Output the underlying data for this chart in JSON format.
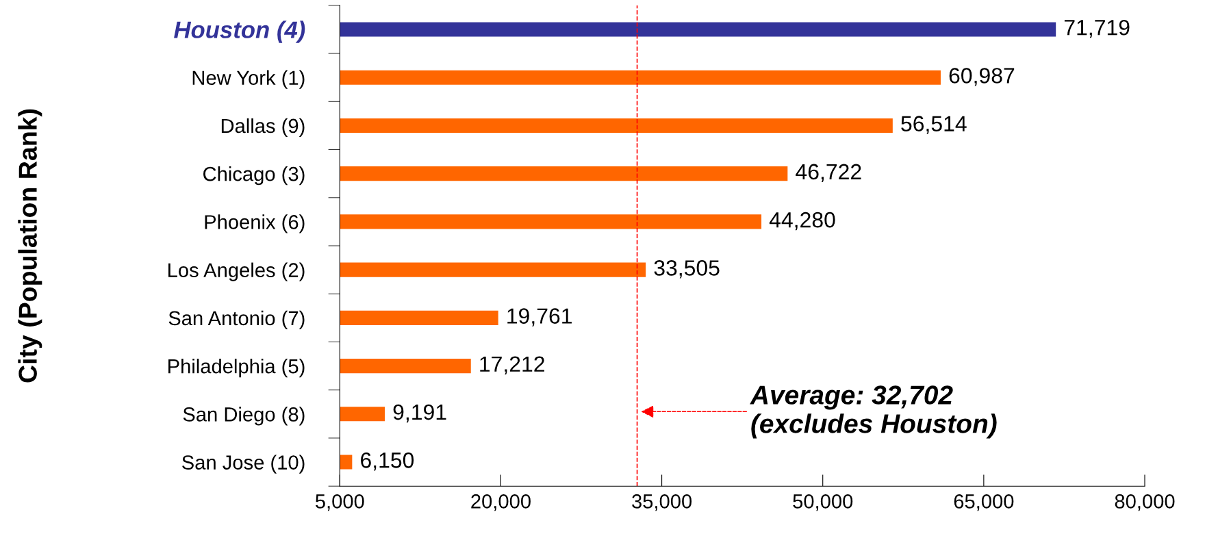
{
  "chart_data": {
    "type": "bar",
    "orientation": "horizontal",
    "ylabel": "City (Population Rank)",
    "categories": [
      "Houston (4)",
      "New York (1)",
      "Dallas (9)",
      "Chicago (3)",
      "Phoenix (6)",
      "Los Angeles (2)",
      "San Antonio (7)",
      "Philadelphia (5)",
      "San Diego (8)",
      "San Jose (10)"
    ],
    "values": [
      71719,
      60987,
      56514,
      46722,
      44280,
      33505,
      19761,
      17212,
      9191,
      6150
    ],
    "colors": [
      "#333399",
      "#ff6600",
      "#ff6600",
      "#ff6600",
      "#ff6600",
      "#ff6600",
      "#ff6600",
      "#ff6600",
      "#ff6600",
      "#ff6600"
    ],
    "value_labels": [
      "71,719",
      "60,987",
      "56,514",
      "46,722",
      "44,280",
      "33,505",
      "19,761",
      "17,212",
      "9,191",
      "6,150"
    ],
    "xlim": [
      5000,
      80000
    ],
    "xticks": [
      {
        "value": 5000,
        "label": "5,000"
      },
      {
        "value": 20000,
        "label": "20,000"
      },
      {
        "value": 35000,
        "label": "35,000"
      },
      {
        "value": 50000,
        "label": "50,000"
      },
      {
        "value": 65000,
        "label": "65,000"
      },
      {
        "value": 80000,
        "label": "80,000"
      }
    ],
    "ref_lines": [
      {
        "axis": "x",
        "value": 32702,
        "color": "#ff0000",
        "line_style": "dashed"
      }
    ],
    "annotations": [
      "Average: 32,702\n(excludes Houston)"
    ],
    "grid": false
  }
}
